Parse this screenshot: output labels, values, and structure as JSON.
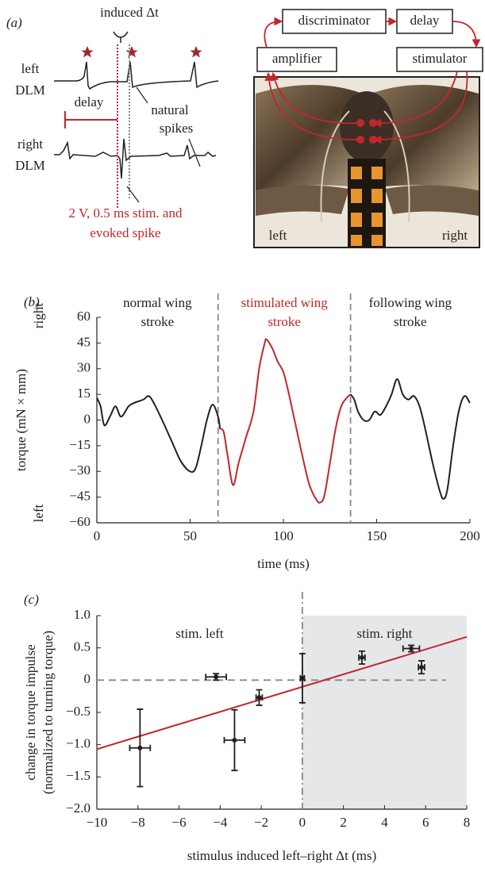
{
  "panel_a": {
    "label": "(a)",
    "induced": "induced Δt",
    "left_dlm": [
      "left",
      "DLM"
    ],
    "delay_label": "delay",
    "natural_spikes": [
      "natural",
      "spikes"
    ],
    "right_dlm": [
      "right",
      "DLM"
    ],
    "stim_note": [
      "2 V, 0.5 ms stim. and",
      "evoked spike"
    ],
    "boxes": {
      "discriminator": "discriminator",
      "delay": "delay",
      "amplifier": "amplifier",
      "stimulator": "stimulator"
    },
    "photo_labels": {
      "left": "left",
      "right": "right"
    }
  },
  "chart_data": [
    {
      "type": "line",
      "panel_label": "(b)",
      "xlabel": "time (ms)",
      "ylabel": "torque (mN × mm)",
      "y_direction_labels": {
        "top": "right",
        "bottom": "left"
      },
      "xlim": [
        0,
        200
      ],
      "xticks": [
        0,
        50,
        100,
        150,
        200
      ],
      "ylim": [
        -60,
        60
      ],
      "yticks": [
        {
          "value": -60,
          "label": "−60"
        },
        {
          "value": -45,
          "label": "−45"
        },
        {
          "value": -30,
          "label": "−30"
        },
        {
          "value": -15,
          "label": "−15"
        },
        0,
        15,
        30,
        45,
        60
      ],
      "vlines": [
        65,
        136
      ],
      "annotations": [
        {
          "lines": [
            "normal wing",
            "stroke"
          ],
          "color": "#231f20"
        },
        {
          "lines": [
            "stimulated wing",
            "stroke"
          ],
          "color": "#c1272d"
        },
        {
          "lines": [
            "following wing",
            "stroke"
          ],
          "color": "#231f20"
        }
      ],
      "series": [
        {
          "color": "#231f20",
          "x": [
            0,
            2,
            4,
            7,
            10,
            13,
            17,
            20,
            25,
            28,
            31,
            35,
            40,
            45,
            50,
            53,
            56,
            59,
            62,
            65,
            66
          ],
          "values": [
            13,
            8,
            -3,
            2,
            8,
            2,
            8,
            10,
            12,
            14,
            9,
            0,
            -12,
            -24,
            -30,
            -28,
            -15,
            0,
            9,
            2,
            -5
          ]
        },
        {
          "color": "#c1272d",
          "x": [
            66,
            68,
            70,
            73,
            76,
            80,
            84,
            87,
            90,
            91,
            94,
            97,
            100,
            103,
            106,
            110,
            114,
            118,
            120,
            122,
            125,
            128,
            131,
            134,
            136
          ],
          "values": [
            -5,
            -7,
            -20,
            -38,
            -25,
            -10,
            5,
            30,
            45,
            47,
            42,
            34,
            28,
            15,
            0,
            -20,
            -38,
            -47,
            -48,
            -44,
            -25,
            -5,
            8,
            13,
            15
          ]
        },
        {
          "color": "#231f20",
          "x": [
            136,
            138,
            140,
            143,
            146,
            149,
            152,
            155,
            158,
            161,
            164,
            167,
            170,
            173,
            176,
            180,
            184,
            186,
            188,
            191,
            194,
            197,
            200
          ],
          "values": [
            15,
            12,
            5,
            0,
            0,
            5,
            3,
            8,
            15,
            24,
            15,
            12,
            14,
            8,
            -5,
            -25,
            -42,
            -46,
            -40,
            -15,
            5,
            14,
            10
          ]
        }
      ]
    },
    {
      "type": "scatter",
      "panel_label": "(c)",
      "xlabel": "stimulus induced left–right Δt (ms)",
      "ylabel": [
        "change in torque impulse",
        "(normalized to turning torque)"
      ],
      "xlim": [
        -10,
        8
      ],
      "xticks": [
        {
          "value": -10,
          "label": "−10"
        },
        {
          "value": -8,
          "label": "−8"
        },
        {
          "value": -6,
          "label": "−6"
        },
        {
          "value": -4,
          "label": "−4"
        },
        {
          "value": -2,
          "label": "−2"
        },
        0,
        2,
        4,
        6,
        8
      ],
      "ylim": [
        -2,
        1
      ],
      "yticks": [
        {
          "value": -2,
          "label": "−2.0"
        },
        {
          "value": -1.5,
          "label": "−1.5"
        },
        {
          "value": -1,
          "label": "−1.0"
        },
        {
          "value": -0.5,
          "label": "−0.5"
        },
        0,
        0.5,
        {
          "value": 1,
          "label": "1.0"
        }
      ],
      "vlines": [
        0
      ],
      "hline": {
        "y": 0,
        "x": [
          -10,
          7
        ]
      },
      "shade": {
        "x": [
          0,
          8
        ],
        "color": "#e6e7e9"
      },
      "annotations": [
        {
          "lines": [
            "stim. left"
          ],
          "color": "#231f20"
        },
        {
          "lines": [
            "stim. right"
          ],
          "color": "#231f20"
        }
      ],
      "series": [
        {
          "color": "#231f20",
          "x": [
            -7.9,
            -4.2,
            -3.3,
            -2.1,
            0.0,
            2.9,
            5.3,
            5.8
          ],
          "values": [
            -1.05,
            0.05,
            -0.93,
            -0.27,
            0.03,
            0.35,
            0.49,
            0.2
          ],
          "xerr": [
            0.5,
            0.5,
            0.5,
            0.15,
            0.1,
            0.15,
            0.4,
            0.15
          ],
          "yerr": [
            0.6,
            0.05,
            0.47,
            0.12,
            0.38,
            0.1,
            0.05,
            0.1
          ]
        }
      ],
      "fit": {
        "color": "#c1272d",
        "x": [
          -10,
          8
        ],
        "values": [
          -1.07,
          0.67
        ]
      }
    }
  ]
}
